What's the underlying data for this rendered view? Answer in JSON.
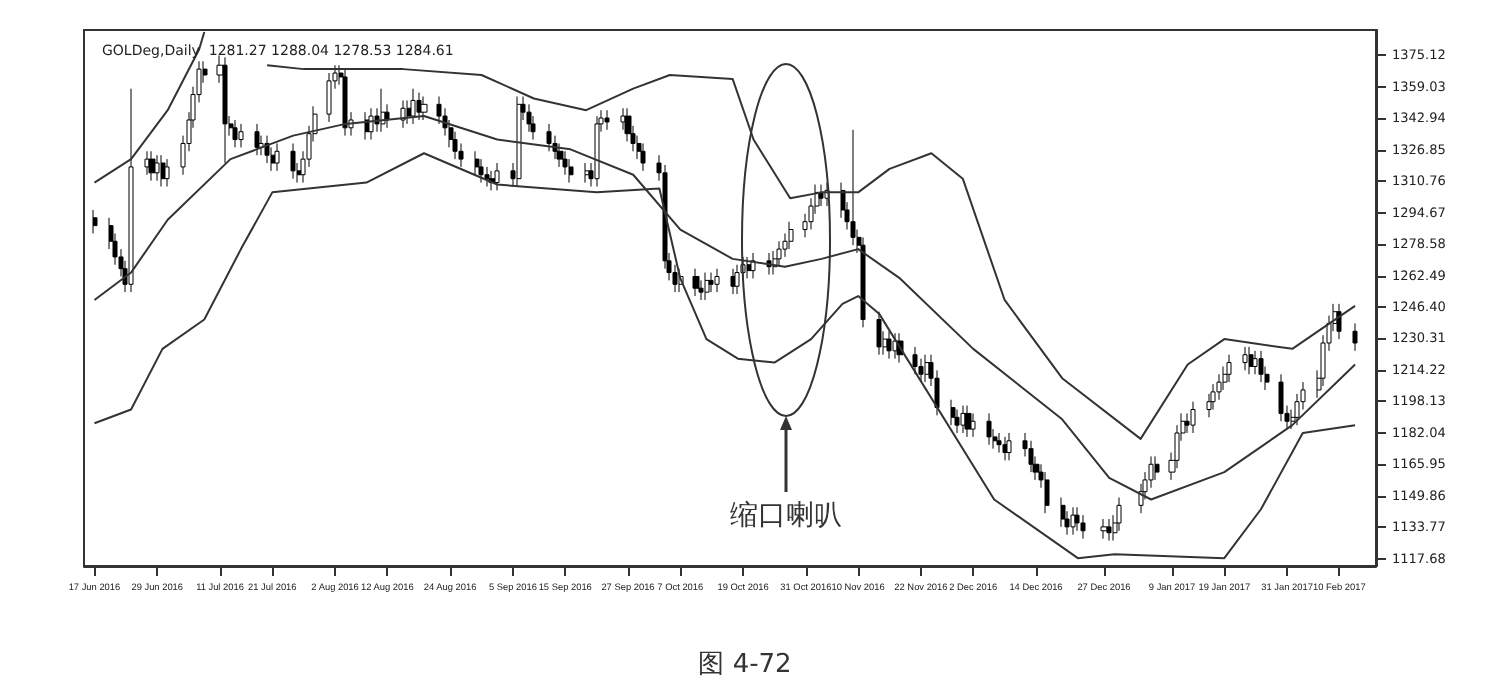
{
  "chart_data": {
    "type": "candlestick",
    "title": "GOLDeg,Daily  1281.27 1288.04 1278.53 1284.61",
    "annotations": [
      "缩口喇叭",
      "图 4-72"
    ],
    "xlim": [
      "2016-06-15",
      "2017-02-17"
    ],
    "xticks": [
      {
        "value": "2016-06-17",
        "label": "17 Jun 2016"
      },
      {
        "value": "2016-06-29",
        "label": "29 Jun 2016"
      },
      {
        "value": "2016-07-11",
        "label": "11 Jul 2016"
      },
      {
        "value": "2016-07-21",
        "label": "21 Jul 2016"
      },
      {
        "value": "2016-08-02",
        "label": "2 Aug 2016"
      },
      {
        "value": "2016-08-12",
        "label": "12 Aug 2016"
      },
      {
        "value": "2016-08-24",
        "label": "24 Aug 2016"
      },
      {
        "value": "2016-09-05",
        "label": "5 Sep 2016"
      },
      {
        "value": "2016-09-15",
        "label": "15 Sep 2016"
      },
      {
        "value": "2016-09-27",
        "label": "27 Sep 2016"
      },
      {
        "value": "2016-10-07",
        "label": "7 Oct 2016"
      },
      {
        "value": "2016-10-19",
        "label": "19 Oct 2016"
      },
      {
        "value": "2016-10-31",
        "label": "31 Oct 2016"
      },
      {
        "value": "2016-11-10",
        "label": "10 Nov 2016"
      },
      {
        "value": "2016-11-22",
        "label": "22 Nov 2016"
      },
      {
        "value": "2016-12-02",
        "label": "2 Dec 2016"
      },
      {
        "value": "2016-12-14",
        "label": "14 Dec 2016"
      },
      {
        "value": "2016-12-27",
        "label": "27 Dec 2016"
      },
      {
        "value": "2017-01-09",
        "label": "9 Jan 2017"
      },
      {
        "value": "2017-01-19",
        "label": "19 Jan 2017"
      },
      {
        "value": "2017-01-31",
        "label": "31 Jan 2017"
      },
      {
        "value": "2017-02-10",
        "label": "10 Feb 2017"
      }
    ],
    "ylim": [
      1114,
      1388
    ],
    "yticks": [
      1375.12,
      1359.03,
      1342.94,
      1326.85,
      1310.76,
      1294.67,
      1278.58,
      1262.49,
      {
        "value": 1246.4,
        "label": "1246.40"
      },
      1230.31,
      1214.22,
      1198.13,
      1182.04,
      1165.95,
      1149.86,
      1133.77,
      1117.68
    ],
    "grid": false,
    "marker": "none",
    "x": [
      "2016-06-17",
      "2016-06-20",
      "2016-06-21",
      "2016-06-22",
      "2016-06-23",
      "2016-06-24",
      "2016-06-27",
      "2016-06-28",
      "2016-06-29",
      "2016-06-30",
      "2016-07-01",
      "2016-07-04",
      "2016-07-05",
      "2016-07-06",
      "2016-07-07",
      "2016-07-08",
      "2016-07-11",
      "2016-07-12",
      "2016-07-13",
      "2016-07-14",
      "2016-07-15",
      "2016-07-18",
      "2016-07-19",
      "2016-07-20",
      "2016-07-21",
      "2016-07-22",
      "2016-07-25",
      "2016-07-26",
      "2016-07-27",
      "2016-07-28",
      "2016-07-29",
      "2016-08-01",
      "2016-08-02",
      "2016-08-03",
      "2016-08-04",
      "2016-08-05",
      "2016-08-08",
      "2016-08-09",
      "2016-08-10",
      "2016-08-11",
      "2016-08-12",
      "2016-08-15",
      "2016-08-16",
      "2016-08-17",
      "2016-08-18",
      "2016-08-19",
      "2016-08-22",
      "2016-08-23",
      "2016-08-24",
      "2016-08-25",
      "2016-08-26",
      "2016-08-29",
      "2016-08-30",
      "2016-08-31",
      "2016-09-01",
      "2016-09-02",
      "2016-09-05",
      "2016-09-06",
      "2016-09-07",
      "2016-09-08",
      "2016-09-09",
      "2016-09-12",
      "2016-09-13",
      "2016-09-14",
      "2016-09-15",
      "2016-09-16",
      "2016-09-19",
      "2016-09-20",
      "2016-09-21",
      "2016-09-22",
      "2016-09-23",
      "2016-09-26",
      "2016-09-27",
      "2016-09-28",
      "2016-09-29",
      "2016-09-30",
      "2016-10-03",
      "2016-10-04",
      "2016-10-05",
      "2016-10-06",
      "2016-10-07",
      "2016-10-10",
      "2016-10-11",
      "2016-10-12",
      "2016-10-13",
      "2016-10-14",
      "2016-10-17",
      "2016-10-18",
      "2016-10-19",
      "2016-10-20",
      "2016-10-21",
      "2016-10-24",
      "2016-10-25",
      "2016-10-26",
      "2016-10-27",
      "2016-10-28",
      "2016-10-31",
      "2016-11-01",
      "2016-11-02",
      "2016-11-03",
      "2016-11-04",
      "2016-11-07",
      "2016-11-08",
      "2016-11-09",
      "2016-11-10",
      "2016-11-11",
      "2016-11-14",
      "2016-11-15",
      "2016-11-16",
      "2016-11-17",
      "2016-11-18",
      "2016-11-21",
      "2016-11-22",
      "2016-11-23",
      "2016-11-24",
      "2016-11-25",
      "2016-11-28",
      "2016-11-29",
      "2016-11-30",
      "2016-12-01",
      "2016-12-02",
      "2016-12-05",
      "2016-12-06",
      "2016-12-07",
      "2016-12-08",
      "2016-12-09",
      "2016-12-12",
      "2016-12-13",
      "2016-12-14",
      "2016-12-15",
      "2016-12-16",
      "2016-12-19",
      "2016-12-20",
      "2016-12-21",
      "2016-12-22",
      "2016-12-23",
      "2016-12-27",
      "2016-12-28",
      "2016-12-29",
      "2016-12-30",
      "2017-01-03",
      "2017-01-04",
      "2017-01-05",
      "2017-01-06",
      "2017-01-09",
      "2017-01-10",
      "2017-01-11",
      "2017-01-12",
      "2017-01-13",
      "2017-01-16",
      "2017-01-17",
      "2017-01-18",
      "2017-01-19",
      "2017-01-20",
      "2017-01-23",
      "2017-01-24",
      "2017-01-25",
      "2017-01-26",
      "2017-01-27",
      "2017-01-30",
      "2017-01-31",
      "2017-02-01",
      "2017-02-02",
      "2017-02-03",
      "2017-02-06",
      "2017-02-07",
      "2017-02-08",
      "2017-02-09",
      "2017-02-10",
      "2017-02-13"
    ],
    "ohlc": [
      [
        1292,
        1296,
        1284,
        1288
      ],
      [
        1288,
        1292,
        1276,
        1280
      ],
      [
        1280,
        1284,
        1268,
        1272
      ],
      [
        1272,
        1276,
        1262,
        1266
      ],
      [
        1266,
        1270,
        1254,
        1258
      ],
      [
        1258,
        1358,
        1254,
        1318
      ],
      [
        1318,
        1326,
        1314,
        1322
      ],
      [
        1322,
        1326,
        1311,
        1315
      ],
      [
        1315,
        1324,
        1311,
        1320
      ],
      [
        1320,
        1324,
        1308,
        1312
      ],
      [
        1312,
        1322,
        1308,
        1318
      ],
      [
        1318,
        1334,
        1314,
        1330
      ],
      [
        1330,
        1346,
        1326,
        1342
      ],
      [
        1342,
        1359,
        1338,
        1355
      ],
      [
        1355,
        1372,
        1351,
        1368
      ],
      [
        1368,
        1372,
        1361,
        1365
      ],
      [
        1365,
        1375,
        1361,
        1370
      ],
      [
        1370,
        1374,
        1320,
        1340
      ],
      [
        1340,
        1344,
        1334,
        1338
      ],
      [
        1338,
        1342,
        1328,
        1332
      ],
      [
        1332,
        1340,
        1328,
        1336
      ],
      [
        1336,
        1340,
        1324,
        1328
      ],
      [
        1328,
        1334,
        1324,
        1330
      ],
      [
        1330,
        1334,
        1320,
        1324
      ],
      [
        1324,
        1328,
        1316,
        1320
      ],
      [
        1320,
        1330,
        1316,
        1326
      ],
      [
        1326,
        1330,
        1312,
        1316
      ],
      [
        1316,
        1320,
        1310,
        1314
      ],
      [
        1314,
        1326,
        1310,
        1322
      ],
      [
        1322,
        1339,
        1318,
        1335
      ],
      [
        1335,
        1349,
        1331,
        1345
      ],
      [
        1345,
        1366,
        1341,
        1362
      ],
      [
        1362,
        1370,
        1358,
        1366
      ],
      [
        1366,
        1370,
        1360,
        1364
      ],
      [
        1364,
        1368,
        1334,
        1338
      ],
      [
        1338,
        1346,
        1334,
        1342
      ],
      [
        1342,
        1346,
        1332,
        1336
      ],
      [
        1336,
        1348,
        1332,
        1344
      ],
      [
        1344,
        1348,
        1336,
        1340
      ],
      [
        1340,
        1358,
        1336,
        1346
      ],
      [
        1346,
        1350,
        1338,
        1342
      ],
      [
        1342,
        1352,
        1338,
        1348
      ],
      [
        1348,
        1352,
        1340,
        1344
      ],
      [
        1344,
        1358,
        1340,
        1352
      ],
      [
        1352,
        1356,
        1342,
        1346
      ],
      [
        1346,
        1354,
        1342,
        1350
      ],
      [
        1350,
        1354,
        1340,
        1344
      ],
      [
        1344,
        1348,
        1334,
        1338
      ],
      [
        1338,
        1342,
        1328,
        1332
      ],
      [
        1332,
        1336,
        1322,
        1326
      ],
      [
        1326,
        1330,
        1318,
        1322
      ],
      [
        1322,
        1326,
        1314,
        1318
      ],
      [
        1318,
        1322,
        1310,
        1314
      ],
      [
        1314,
        1318,
        1308,
        1312
      ],
      [
        1312,
        1316,
        1306,
        1310
      ],
      [
        1310,
        1320,
        1306,
        1316
      ],
      [
        1316,
        1320,
        1308,
        1312
      ],
      [
        1312,
        1354,
        1308,
        1350
      ],
      [
        1350,
        1354,
        1342,
        1346
      ],
      [
        1346,
        1350,
        1336,
        1340
      ],
      [
        1340,
        1344,
        1332,
        1336
      ],
      [
        1336,
        1340,
        1326,
        1330
      ],
      [
        1330,
        1334,
        1322,
        1326
      ],
      [
        1326,
        1330,
        1318,
        1322
      ],
      [
        1322,
        1326,
        1314,
        1318
      ],
      [
        1318,
        1322,
        1310,
        1314
      ],
      [
        1314,
        1320,
        1310,
        1316
      ],
      [
        1316,
        1320,
        1308,
        1312
      ],
      [
        1312,
        1344,
        1308,
        1340
      ],
      [
        1340,
        1347,
        1336,
        1343
      ],
      [
        1343,
        1347,
        1337,
        1341
      ],
      [
        1341,
        1348,
        1337,
        1344
      ],
      [
        1344,
        1348,
        1331,
        1335
      ],
      [
        1335,
        1339,
        1326,
        1330
      ],
      [
        1330,
        1334,
        1322,
        1326
      ],
      [
        1326,
        1330,
        1316,
        1320
      ],
      [
        1320,
        1324,
        1311,
        1315
      ],
      [
        1315,
        1319,
        1266,
        1270
      ],
      [
        1270,
        1274,
        1260,
        1264
      ],
      [
        1264,
        1268,
        1254,
        1258
      ],
      [
        1258,
        1266,
        1254,
        1262
      ],
      [
        1262,
        1266,
        1252,
        1256
      ],
      [
        1256,
        1260,
        1250,
        1254
      ],
      [
        1254,
        1264,
        1250,
        1260
      ],
      [
        1260,
        1264,
        1254,
        1258
      ],
      [
        1258,
        1266,
        1254,
        1262
      ],
      [
        1262,
        1266,
        1253,
        1257
      ],
      [
        1257,
        1268,
        1253,
        1264
      ],
      [
        1264,
        1272,
        1260,
        1268
      ],
      [
        1268,
        1272,
        1261,
        1265
      ],
      [
        1265,
        1274,
        1261,
        1270
      ],
      [
        1270,
        1274,
        1263,
        1267
      ],
      [
        1267,
        1275,
        1263,
        1271
      ],
      [
        1271,
        1280,
        1267,
        1276
      ],
      [
        1276,
        1284,
        1272,
        1280
      ],
      [
        1280,
        1290,
        1276,
        1286
      ],
      [
        1286,
        1294,
        1282,
        1290
      ],
      [
        1290,
        1302,
        1286,
        1298
      ],
      [
        1298,
        1309,
        1294,
        1305
      ],
      [
        1305,
        1309,
        1298,
        1302
      ],
      [
        1302,
        1310,
        1298,
        1306
      ],
      [
        1306,
        1310,
        1292,
        1296
      ],
      [
        1296,
        1300,
        1286,
        1290
      ],
      [
        1290,
        1337,
        1278,
        1282
      ],
      [
        1282,
        1286,
        1274,
        1278
      ],
      [
        1278,
        1282,
        1236,
        1240
      ],
      [
        1240,
        1244,
        1222,
        1226
      ],
      [
        1226,
        1234,
        1222,
        1230
      ],
      [
        1230,
        1234,
        1220,
        1224
      ],
      [
        1224,
        1233,
        1220,
        1229
      ],
      [
        1229,
        1233,
        1218,
        1222
      ],
      [
        1222,
        1226,
        1212,
        1216
      ],
      [
        1216,
        1220,
        1208,
        1212
      ],
      [
        1212,
        1222,
        1208,
        1218
      ],
      [
        1218,
        1222,
        1206,
        1210
      ],
      [
        1210,
        1214,
        1191,
        1195
      ],
      [
        1195,
        1199,
        1186,
        1190
      ],
      [
        1190,
        1194,
        1182,
        1186
      ],
      [
        1186,
        1196,
        1182,
        1192
      ],
      [
        1192,
        1196,
        1180,
        1184
      ],
      [
        1184,
        1192,
        1180,
        1188
      ],
      [
        1188,
        1192,
        1176,
        1180
      ],
      [
        1180,
        1184,
        1174,
        1178
      ],
      [
        1178,
        1182,
        1172,
        1176
      ],
      [
        1176,
        1180,
        1168,
        1172
      ],
      [
        1172,
        1182,
        1168,
        1178
      ],
      [
        1178,
        1182,
        1170,
        1174
      ],
      [
        1174,
        1178,
        1162,
        1166
      ],
      [
        1166,
        1170,
        1158,
        1162
      ],
      [
        1162,
        1166,
        1154,
        1158
      ],
      [
        1158,
        1162,
        1141,
        1145
      ],
      [
        1145,
        1149,
        1134,
        1138
      ],
      [
        1138,
        1142,
        1130,
        1134
      ],
      [
        1134,
        1144,
        1130,
        1140
      ],
      [
        1140,
        1144,
        1132,
        1136
      ],
      [
        1136,
        1140,
        1128,
        1132
      ],
      [
        1132,
        1138,
        1128,
        1134
      ],
      [
        1134,
        1138,
        1127,
        1131
      ],
      [
        1131,
        1140,
        1127,
        1136
      ],
      [
        1136,
        1149,
        1132,
        1145
      ],
      [
        1145,
        1156,
        1141,
        1152
      ],
      [
        1152,
        1162,
        1148,
        1158
      ],
      [
        1158,
        1170,
        1154,
        1166
      ],
      [
        1166,
        1170,
        1158,
        1162
      ],
      [
        1162,
        1172,
        1158,
        1168
      ],
      [
        1168,
        1186,
        1164,
        1182
      ],
      [
        1182,
        1192,
        1178,
        1188
      ],
      [
        1188,
        1192,
        1182,
        1186
      ],
      [
        1186,
        1198,
        1182,
        1194
      ],
      [
        1194,
        1202,
        1190,
        1198
      ],
      [
        1198,
        1207,
        1194,
        1203
      ],
      [
        1203,
        1212,
        1199,
        1208
      ],
      [
        1208,
        1216,
        1204,
        1212
      ],
      [
        1212,
        1222,
        1208,
        1218
      ],
      [
        1218,
        1226,
        1214,
        1222
      ],
      [
        1222,
        1226,
        1212,
        1216
      ],
      [
        1216,
        1224,
        1212,
        1220
      ],
      [
        1220,
        1224,
        1208,
        1212
      ],
      [
        1212,
        1216,
        1204,
        1208
      ],
      [
        1208,
        1212,
        1188,
        1192
      ],
      [
        1192,
        1196,
        1184,
        1188
      ],
      [
        1188,
        1194,
        1184,
        1190
      ],
      [
        1190,
        1202,
        1186,
        1198
      ],
      [
        1198,
        1208,
        1194,
        1204
      ],
      [
        1204,
        1214,
        1200,
        1210
      ],
      [
        1210,
        1232,
        1206,
        1228
      ],
      [
        1228,
        1242,
        1224,
        1238
      ],
      [
        1238,
        1248,
        1234,
        1244
      ],
      [
        1244,
        1248,
        1230,
        1234
      ],
      [
        1234,
        1238,
        1224,
        1228
      ]
    ],
    "series": [
      {
        "type": "line",
        "color": "#333333",
        "x": [
          "2016-06-17",
          "2016-06-24",
          "2016-07-01",
          "2016-07-07",
          "2016-07-08",
          "2016-07-11",
          "2016-07-20",
          "2016-07-27",
          "2016-08-15",
          "2016-08-30",
          "2016-09-09",
          "2016-09-19",
          "2016-09-28",
          "2016-10-05",
          "2016-10-17",
          "2016-10-21",
          "2016-10-28",
          "2016-11-03",
          "2016-11-10",
          "2016-11-16",
          "2016-11-24",
          "2016-11-30",
          "2016-12-08",
          "2016-12-19",
          "2017-01-03",
          "2017-01-12",
          "2017-01-19",
          "2017-02-01",
          "2017-02-13"
        ],
        "values": [
          1310,
          1322,
          1347,
          1378,
          1387,
          null,
          1370,
          1368,
          1368,
          1365,
          1353,
          1347,
          1358,
          1365,
          1363,
          1332,
          1302,
          1305,
          1305,
          1317,
          1325,
          1312,
          1250,
          1210,
          1179,
          1217,
          1230,
          1225,
          1247
        ]
      },
      {
        "type": "line",
        "color": "#333333",
        "x": [
          "2016-06-17",
          "2016-06-24",
          "2016-07-01",
          "2016-07-13",
          "2016-07-25",
          "2016-08-04",
          "2016-08-19",
          "2016-09-02",
          "2016-09-16",
          "2016-09-28",
          "2016-10-07",
          "2016-10-17",
          "2016-10-27",
          "2016-11-03",
          "2016-11-10",
          "2016-11-18",
          "2016-12-02",
          "2016-12-19",
          "2016-12-28",
          "2017-01-05",
          "2017-01-19",
          "2017-02-01",
          "2017-02-13"
        ],
        "values": [
          1250,
          1264,
          1291,
          1322,
          1334,
          1340,
          1344,
          1332,
          1327,
          1314,
          1286,
          1271,
          1267,
          1271,
          1276,
          1261,
          1225,
          1189,
          1159,
          1148,
          1162,
          1186,
          1217
        ]
      },
      {
        "type": "line",
        "color": "#333333",
        "x": [
          "2016-06-17",
          "2016-06-24",
          "2016-06-30",
          "2016-07-08",
          "2016-07-15",
          "2016-07-21",
          "2016-08-08",
          "2016-08-19",
          "2016-09-02",
          "2016-09-21",
          "2016-10-03",
          "2016-10-07",
          "2016-10-12",
          "2016-10-18",
          "2016-10-25",
          "2016-11-01",
          "2016-11-07",
          "2016-11-10",
          "2016-11-14",
          "2016-12-06",
          "2016-12-22",
          "2016-12-29",
          "2017-01-19",
          "2017-01-26",
          "2017-02-03",
          "2017-02-13"
        ],
        "values": [
          1187,
          1194,
          1225,
          1240,
          1276,
          1305,
          1310,
          1325,
          1309,
          1305,
          1307,
          1261,
          1230,
          1220,
          1218,
          1230,
          1248,
          1252,
          1243,
          1148,
          1118,
          1120,
          1118,
          1143,
          1182,
          1186
        ]
      }
    ]
  }
}
